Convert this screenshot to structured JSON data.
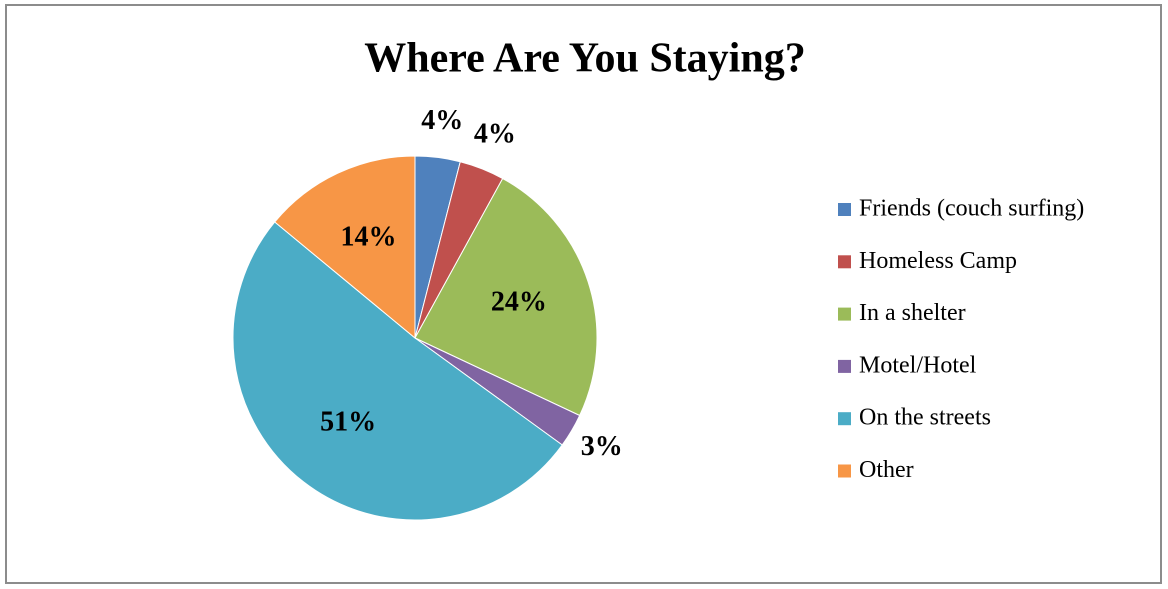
{
  "chart_data": {
    "type": "pie",
    "title": "Where Are You Staying?",
    "categories": [
      "Friends (couch surfing)",
      "Homeless Camp",
      "In a shelter",
      "Motel/Hotel",
      "On the streets",
      "Other"
    ],
    "values": [
      4,
      4,
      24,
      3,
      51,
      14
    ],
    "value_labels": [
      "4%",
      "4%",
      "24%",
      "3%",
      "51%",
      "14%"
    ],
    "colors": [
      "#4f81bd",
      "#c0504d",
      "#9bbb59",
      "#8064a2",
      "#4bacc6",
      "#f79646"
    ],
    "legend": "right"
  }
}
